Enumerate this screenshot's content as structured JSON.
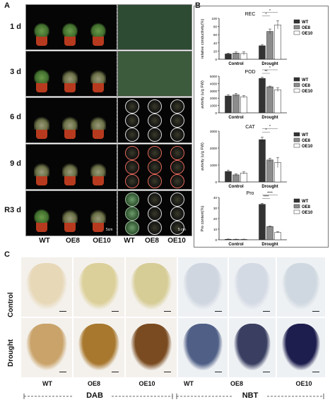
{
  "panels": {
    "a": "A",
    "b": "B",
    "c": "C"
  },
  "panel_a": {
    "rows": [
      "1 d",
      "3 d",
      "6 d",
      "9 d",
      "R3 d"
    ],
    "x_labels_left": [
      "WT",
      "OE8",
      "OE10"
    ],
    "x_labels_right": [
      "WT",
      "OE8",
      "OE10"
    ],
    "scale_left": "5cm",
    "scale_right": "5 cm"
  },
  "panel_b": {
    "legend": [
      "WT",
      "OE8",
      "OE10"
    ],
    "colors": {
      "WT": "#333333",
      "OE8": "#8c8c8c",
      "OE10": "#ffffff"
    }
  },
  "chart_data": [
    {
      "type": "bar",
      "title": "REC",
      "ylabel": "relative conductivity(%)",
      "categories": [
        "Control",
        "Drought"
      ],
      "ylim": [
        0,
        100
      ],
      "yticks": [
        "0",
        "20",
        "40",
        "60",
        "80",
        "100"
      ],
      "series": [
        {
          "name": "WT",
          "values": [
            13,
            33
          ],
          "err": [
            2,
            3
          ]
        },
        {
          "name": "OE8",
          "values": [
            15,
            68
          ],
          "err": [
            3,
            6
          ]
        },
        {
          "name": "OE10",
          "values": [
            14,
            84
          ],
          "err": [
            4,
            10
          ]
        }
      ],
      "sig": [
        "*",
        "*"
      ]
    },
    {
      "type": "bar",
      "title": "POD",
      "ylabel": "avtivity (u/g FW)",
      "categories": [
        "Control",
        "Drought"
      ],
      "ylim": [
        0,
        5000
      ],
      "yticks": [
        "0",
        "1000",
        "2000",
        "3000",
        "4000",
        "5000"
      ],
      "series": [
        {
          "name": "WT",
          "values": [
            2300,
            4700
          ],
          "err": [
            150,
            150
          ]
        },
        {
          "name": "OE8",
          "values": [
            2450,
            3550
          ],
          "err": [
            200,
            100
          ]
        },
        {
          "name": "OE10",
          "values": [
            2200,
            3150
          ],
          "err": [
            150,
            250
          ]
        }
      ],
      "sig": [
        "**",
        "*"
      ]
    },
    {
      "type": "bar",
      "title": "CAT",
      "ylabel": "avtivity (u/g FW)",
      "categories": [
        "Control",
        "Drought"
      ],
      "ylim": [
        0,
        3000
      ],
      "yticks": [
        "0",
        "1000",
        "2000",
        "3000"
      ],
      "series": [
        {
          "name": "WT",
          "values": [
            620,
            2500
          ],
          "err": [
            80,
            150
          ]
        },
        {
          "name": "OE8",
          "values": [
            420,
            1300
          ],
          "err": [
            60,
            100
          ]
        },
        {
          "name": "OE10",
          "values": [
            530,
            1150
          ],
          "err": [
            70,
            300
          ]
        }
      ],
      "sig": [
        "*",
        "*"
      ]
    },
    {
      "type": "bar",
      "title": "Pro",
      "ylabel": "Pro content(%)",
      "categories": [
        "Control",
        "Drought"
      ],
      "ylim": [
        0,
        40
      ],
      "yticks": [
        "0",
        "10",
        "20",
        "30",
        "40"
      ],
      "series": [
        {
          "name": "WT",
          "values": [
            0.5,
            33.5
          ],
          "err": [
            0.2,
            1
          ]
        },
        {
          "name": "OE8",
          "values": [
            0.4,
            12.5
          ],
          "err": [
            0.2,
            0.5
          ]
        },
        {
          "name": "OE10",
          "values": [
            0.4,
            7
          ],
          "err": [
            0.2,
            0.6
          ]
        }
      ],
      "sig": [
        "****",
        "****"
      ]
    }
  ],
  "panel_c": {
    "row_labels": [
      "Control",
      "Drought"
    ],
    "col_labels": [
      "WT",
      "OE8",
      "OE10",
      "WT",
      "OE8",
      "OE10"
    ],
    "group_left": "DAB",
    "group_right": "NBT"
  }
}
